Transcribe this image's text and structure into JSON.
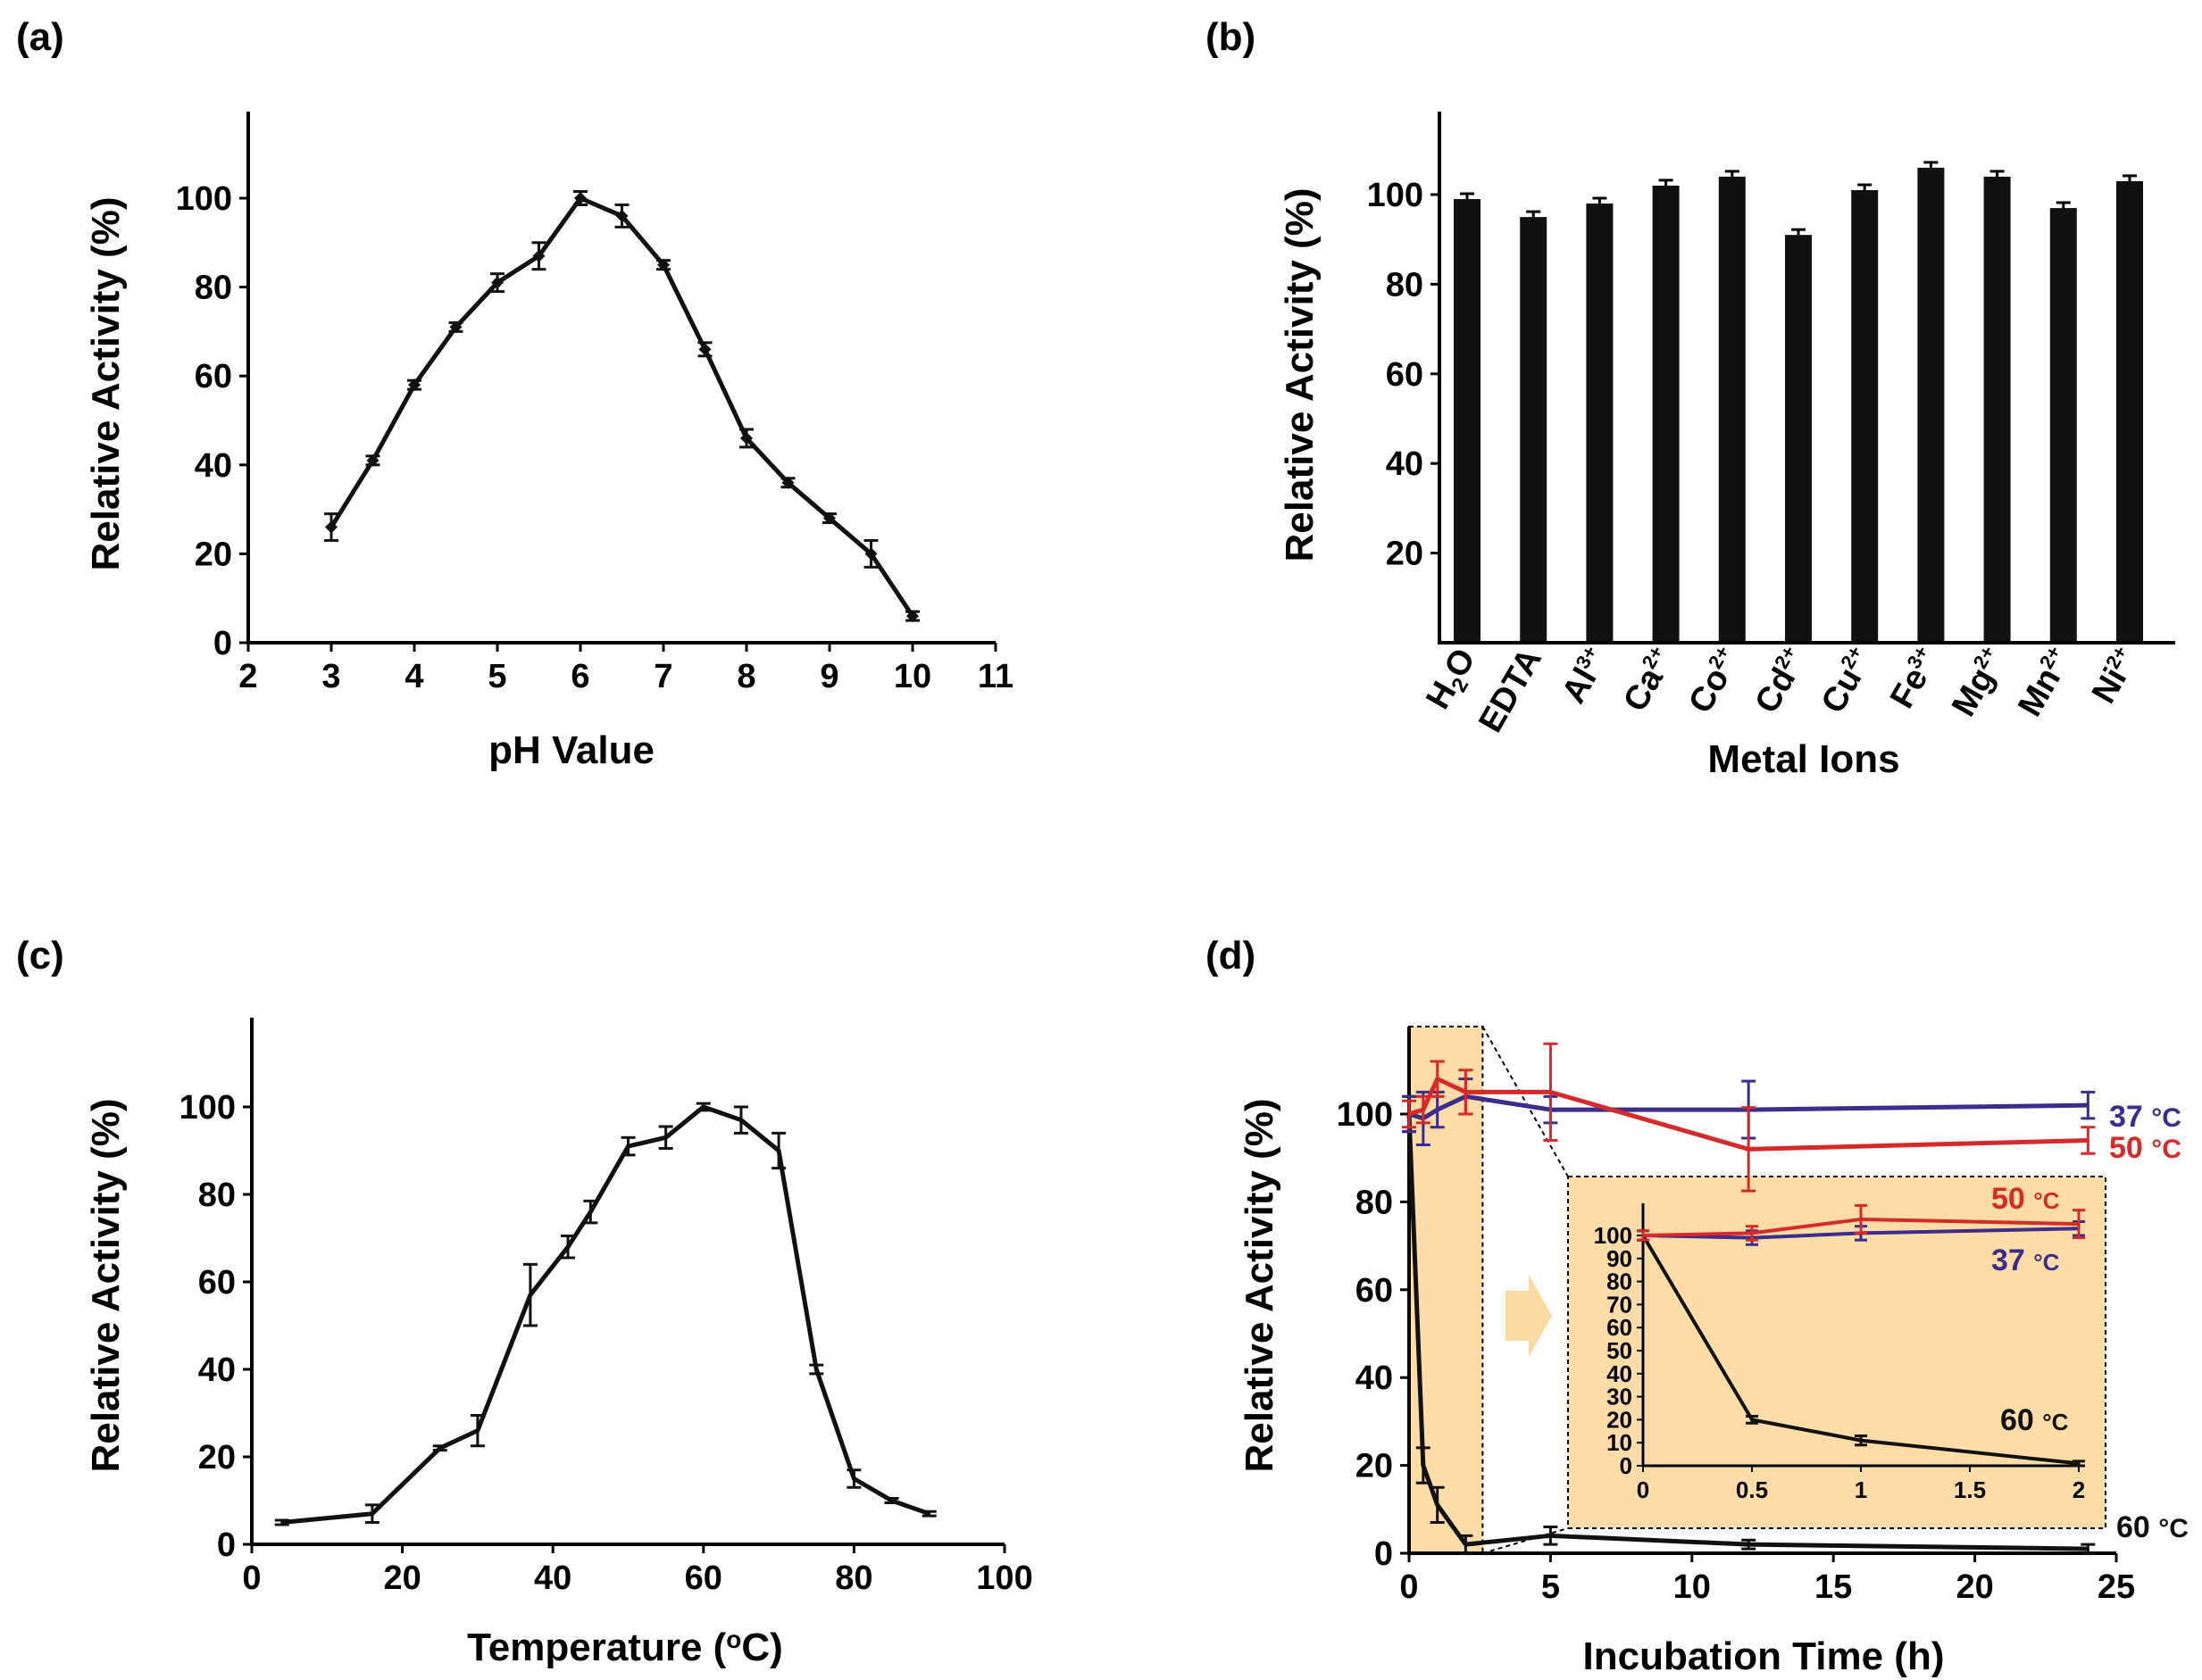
{
  "colors": {
    "axis": "#000000",
    "black_series": "#111111",
    "blue_series": "#3a2d8c",
    "red_series": "#d62a2a",
    "highlight_fill": "#fddca8",
    "arrow_fill": "#fbd9a3"
  },
  "chart_data": [
    {
      "id": "a",
      "panel_label": "(a)",
      "type": "line",
      "xlabel": "pH Value",
      "ylabel": "Relative Activity (%)",
      "xlim": [
        2,
        11
      ],
      "ylim": [
        0,
        120
      ],
      "xticks": [
        2,
        3,
        4,
        5,
        6,
        7,
        8,
        9,
        10,
        11
      ],
      "yticks": [
        0,
        20,
        40,
        60,
        80,
        100
      ],
      "series": [
        {
          "name": "activity",
          "x": [
            3,
            3.5,
            4,
            4.5,
            5,
            5.5,
            6,
            6.5,
            7,
            7.5,
            8,
            8.5,
            9,
            9.5,
            10
          ],
          "y": [
            26,
            41,
            58,
            71,
            81,
            87,
            100,
            96,
            85,
            66,
            46,
            36,
            28,
            20,
            6
          ],
          "err": [
            3,
            1,
            1,
            1,
            2,
            3,
            1.5,
            2.5,
            1,
            1.5,
            2,
            1,
            1,
            3,
            1
          ]
        }
      ]
    },
    {
      "id": "b",
      "panel_label": "(b)",
      "type": "bar",
      "xlabel": "Metal Ions",
      "ylabel": "Relative Activity (%)",
      "ylim": [
        0,
        120
      ],
      "yticks": [
        20,
        40,
        60,
        80,
        100
      ],
      "categories": [
        {
          "base": "H",
          "sub": "2",
          "tail": "O",
          "sup": ""
        },
        {
          "base": "EDTA",
          "sub": "",
          "tail": "",
          "sup": ""
        },
        {
          "base": "Al",
          "sub": "",
          "tail": "",
          "sup": "3+"
        },
        {
          "base": "Ca",
          "sub": "",
          "tail": "",
          "sup": "2+"
        },
        {
          "base": "Co",
          "sub": "",
          "tail": "",
          "sup": "2+"
        },
        {
          "base": "Cd",
          "sub": "",
          "tail": "",
          "sup": "2+"
        },
        {
          "base": "Cu",
          "sub": "",
          "tail": "",
          "sup": "2+"
        },
        {
          "base": "Fe",
          "sub": "",
          "tail": "",
          "sup": "3+"
        },
        {
          "base": "Mg",
          "sub": "",
          "tail": "",
          "sup": "2+"
        },
        {
          "base": "Mn",
          "sub": "",
          "tail": "",
          "sup": "2+"
        },
        {
          "base": "Ni",
          "sub": "",
          "tail": "",
          "sup": "2+"
        }
      ],
      "values": [
        99,
        95,
        98,
        102,
        104,
        91,
        101,
        106,
        104,
        97,
        103
      ],
      "err": [
        1.2,
        1.2,
        1.2,
        1.2,
        1.2,
        1.2,
        1.2,
        1.2,
        1.2,
        1.2,
        1.2
      ]
    },
    {
      "id": "c",
      "panel_label": "(c)",
      "type": "line",
      "xlabel_main": "Temperature (",
      "xlabel_sup": "o",
      "xlabel_tail": "C)",
      "ylabel": "Relative Activity (%)",
      "xlim": [
        0,
        100
      ],
      "ylim": [
        0,
        120
      ],
      "xticks": [
        0,
        20,
        40,
        60,
        80,
        100
      ],
      "yticks": [
        0,
        20,
        40,
        60,
        80,
        100
      ],
      "series": [
        {
          "name": "activity",
          "x": [
            4,
            16,
            25,
            30,
            37,
            42,
            45,
            50,
            55,
            60,
            65,
            70,
            75,
            80,
            85,
            90
          ],
          "y": [
            5,
            7,
            22,
            26,
            57,
            68,
            76,
            91,
            93,
            100,
            97,
            90,
            40,
            15,
            10,
            7
          ],
          "err": [
            0.5,
            2,
            0.5,
            3.5,
            7,
            2.5,
            2.5,
            2,
            2.5,
            0.8,
            3,
            4,
            1,
            2,
            0.5,
            0.5
          ]
        }
      ]
    },
    {
      "id": "d",
      "panel_label": "(d)",
      "type": "line",
      "xlabel": "Incubation Time (h)",
      "ylabel": "Relative Activity (%)",
      "xlim": [
        0,
        25
      ],
      "ylim": [
        0,
        120
      ],
      "xticks": [
        0,
        5,
        10,
        15,
        20,
        25
      ],
      "yticks": [
        0,
        20,
        40,
        60,
        80,
        100
      ],
      "highlight_xrange": [
        0,
        2.6
      ],
      "series": [
        {
          "name": "37 °C",
          "label_num": "37",
          "label_unit": "°C",
          "color": "#3a2d8c",
          "x": [
            0,
            0.5,
            1,
            2,
            5,
            12,
            24
          ],
          "y": [
            100,
            99,
            101,
            104,
            101,
            101,
            102
          ],
          "err": [
            4,
            6,
            4,
            4,
            3,
            6.5,
            3
          ]
        },
        {
          "name": "50 °C",
          "label_num": "50",
          "label_unit": "°C",
          "color": "#d62a2a",
          "x": [
            0,
            0.5,
            1,
            2,
            5,
            12,
            24
          ],
          "y": [
            100,
            101,
            108,
            105,
            105,
            92,
            94
          ],
          "err": [
            3,
            3,
            4,
            5,
            11,
            9.5,
            3
          ]
        },
        {
          "name": "60 °C",
          "label_num": "60",
          "label_unit": "°C",
          "color": "#111111",
          "x": [
            0,
            0.5,
            1,
            2,
            5,
            12,
            24
          ],
          "y": [
            100,
            20,
            11,
            2,
            4,
            2,
            1
          ],
          "err": [
            4,
            4,
            4,
            2,
            2,
            1,
            1
          ]
        }
      ],
      "inset": {
        "xlim": [
          0,
          2
        ],
        "ylim": [
          0,
          110
        ],
        "xticks": [
          0,
          0.5,
          1,
          1.5,
          2
        ],
        "xtick_labels": [
          "0",
          "0.5",
          "1",
          "1.5",
          "2"
        ],
        "yticks": [
          0,
          10,
          20,
          30,
          40,
          50,
          60,
          70,
          80,
          90,
          100
        ],
        "series": [
          {
            "name": "37 °C",
            "label_num": "37",
            "label_unit": "°C",
            "color": "#3a2d8c",
            "x": [
              0,
              0.5,
              1,
              2
            ],
            "y": [
              100,
              99,
              101,
              103
            ],
            "err": [
              2,
              3,
              3,
              3
            ]
          },
          {
            "name": "50 °C",
            "label_num": "50",
            "label_unit": "°C",
            "color": "#d62a2a",
            "x": [
              0,
              0.5,
              1,
              2
            ],
            "y": [
              100,
              101,
              107,
              105
            ],
            "err": [
              2,
              3,
              6,
              6
            ]
          },
          {
            "name": "60 °C",
            "label_num": "60",
            "label_unit": "°C",
            "color": "#111111",
            "x": [
              0,
              0.5,
              1,
              2
            ],
            "y": [
              100,
              20,
              11,
              1
            ],
            "err": [
              2,
              1.5,
              2,
              1
            ]
          }
        ]
      }
    }
  ]
}
